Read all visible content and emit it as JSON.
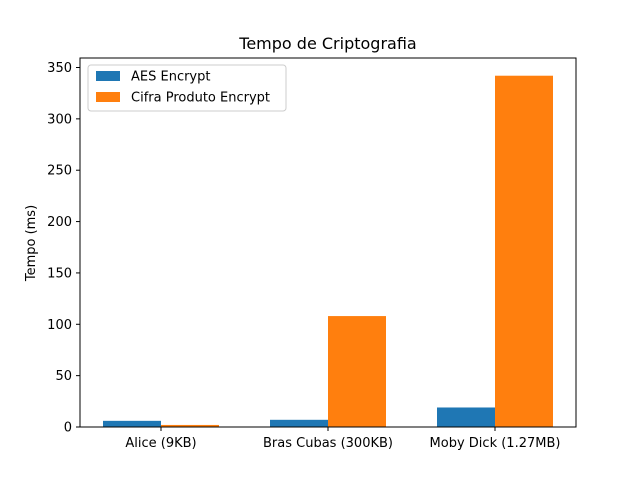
{
  "chart_data": {
    "type": "bar",
    "title": "Tempo de Criptografia",
    "xlabel": "",
    "ylabel": "Tempo (ms)",
    "categories": [
      "Alice (9KB)",
      "Bras Cubas (300KB)",
      "Moby Dick (1.27MB)"
    ],
    "series": [
      {
        "name": "AES Encrypt",
        "color": "#1f77b4",
        "values": [
          6,
          7,
          19
        ]
      },
      {
        "name": "Cifra Produto Encrypt",
        "color": "#ff7f0e",
        "values": [
          2,
          108,
          342
        ]
      }
    ],
    "ylim": [
      0,
      350
    ],
    "yticks": [
      0,
      50,
      100,
      150,
      200,
      250,
      300,
      350
    ],
    "grid": false,
    "legend_position": "top-left"
  }
}
